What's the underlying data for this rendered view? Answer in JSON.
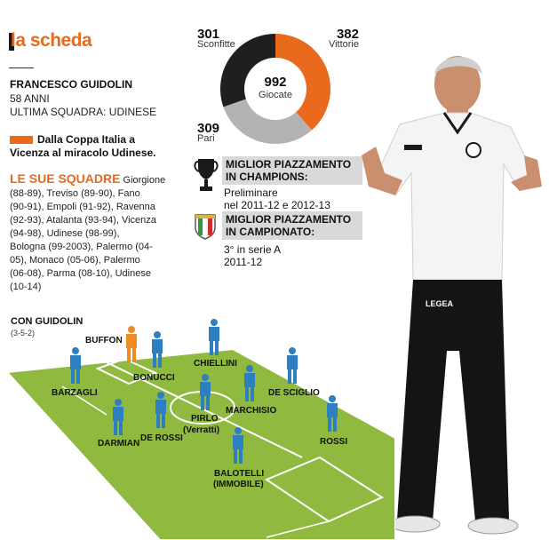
{
  "header": {
    "title": "la scheda"
  },
  "profile": {
    "name": "FRANCESCO GUIDOLIN",
    "age": "58 ANNI",
    "last_team": "ULTIMA SQUADRA: UDINESE"
  },
  "highlight": {
    "line1": "Dalla Coppa Italia a",
    "line2": "Vicenza al miracolo Udinese."
  },
  "teams": {
    "title": "LE SUE SQUADRE",
    "lines": [
      "Giorgione",
      "(88-89), Treviso (89-90), Fano",
      "(90-91), Empoli (91-92), Ravenna",
      "(92-93), Atalanta (93-94), Vicenza",
      "(94-98), Udinese (98-99),",
      "Bologna (99-2003), Palermo (04-",
      "05), Monaco (05-06), Palermo",
      "(06-08), Parma (08-10), Udinese",
      "(10-14)"
    ]
  },
  "stats": {
    "sconfitte": {
      "value": "301",
      "label": "Sconfitte",
      "n": 301,
      "color": "#1f1f1f"
    },
    "vittorie": {
      "value": "382",
      "label": "Vittorie",
      "n": 382,
      "color": "#ea6a1d"
    },
    "pari": {
      "value": "309",
      "label": "Pari",
      "n": 309,
      "color": "#b3b3b3"
    },
    "giocate": {
      "value": "992",
      "label": "Giocate"
    }
  },
  "champions": {
    "title_line1": "MIGLIOR PIAZZAMENTO",
    "title_line2": "IN CHAMPIONS:",
    "value_line1": "Preliminare",
    "value_line2": "nel 2011-12 e 2012-13",
    "icon": "trophy-icon"
  },
  "campionato": {
    "title_line1": "MIGLIOR PIAZZAMENTO",
    "title_line2": "IN CAMPIONATO:",
    "value_line1": "3° in serie A",
    "value_line2": "2011-12",
    "icon": "scudetto-icon"
  },
  "lineup": {
    "title": "CON GUIDOLIN",
    "formation": "(3-5-2)",
    "players": [
      {
        "name": "BUFFON",
        "role": "goalkeeper"
      },
      {
        "name": "BONUCCI"
      },
      {
        "name": "CHIELLINI"
      },
      {
        "name": "BARZAGLI"
      },
      {
        "name": "DE SCIGLIO"
      },
      {
        "name": "MARCHISIO"
      },
      {
        "name": "PIRLO"
      },
      {
        "name": "(Verratti)"
      },
      {
        "name": "DARMIAN"
      },
      {
        "name": "DE ROSSI"
      },
      {
        "name": "ROSSI"
      },
      {
        "name": "BALOTELLI"
      },
      {
        "name": "(IMMOBILE)"
      }
    ]
  },
  "colors": {
    "accent": "#ea6a1d",
    "pitch": "#8fb93f",
    "kit": "#2d7fc1",
    "gk_kit": "#f08a24"
  },
  "coach_photo": {
    "shirt_brand": "LEGEA"
  }
}
